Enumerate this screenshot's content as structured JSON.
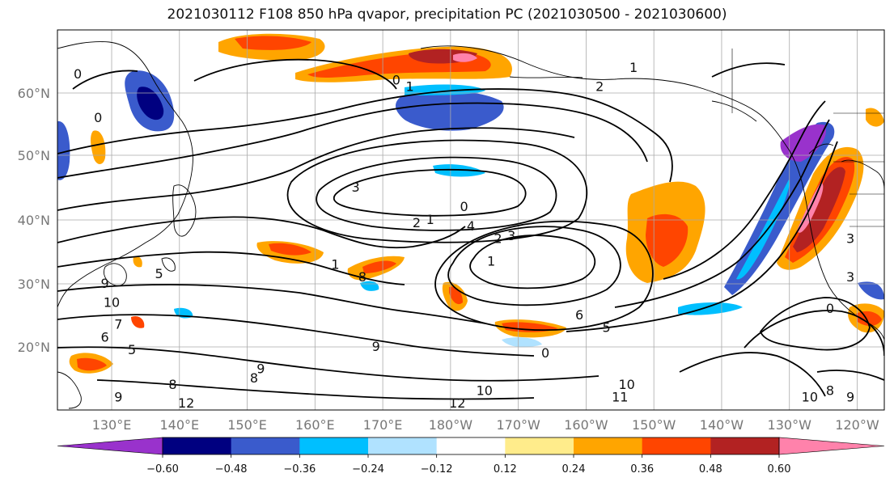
{
  "title": "2021030112 F108 850 hPa qvapor, precipitation PC (2021030500 - 2021030600)",
  "lat_labels": [
    {
      "lat": 60,
      "text": "60°N"
    },
    {
      "lat": 50,
      "text": "50°N"
    },
    {
      "lat": 40,
      "text": "40°N"
    },
    {
      "lat": 30,
      "text": "30°N"
    },
    {
      "lat": 20,
      "text": "20°N"
    }
  ],
  "lon_labels": [
    "130°E",
    "140°E",
    "150°E",
    "160°E",
    "170°E",
    "180°W",
    "170°W",
    "160°W",
    "150°W",
    "140°W",
    "130°W",
    "120°W"
  ],
  "colorbar": {
    "colors": [
      "#9932cc",
      "#000080",
      "#3a5bcc",
      "#00bfff",
      "#b0e2ff",
      "#ffffff",
      "#ffec8b",
      "#ffa500",
      "#ff4500",
      "#b22222",
      "#ff82ab"
    ],
    "ticks": [
      "−0.60",
      "−0.48",
      "−0.36",
      "−0.24",
      "−0.12",
      "0.12",
      "0.24",
      "0.36",
      "0.48",
      "0.60"
    ]
  },
  "contour_labels": [
    {
      "text": "0",
      "lon": 125,
      "lat": 63
    },
    {
      "text": "0",
      "lon": 128,
      "lat": 56
    },
    {
      "text": "1",
      "lon": 174,
      "lat": 61
    },
    {
      "text": "0",
      "lon": 172,
      "lat": 62
    },
    {
      "text": "3",
      "lon": 166,
      "lat": 45
    },
    {
      "text": "0",
      "lon": 182,
      "lat": 42
    },
    {
      "text": "1",
      "lon": 177,
      "lat": 40
    },
    {
      "text": "2",
      "lon": 175,
      "lat": 39.5
    },
    {
      "text": "4",
      "lon": 183,
      "lat": 39
    },
    {
      "text": "2",
      "lon": 187,
      "lat": 37
    },
    {
      "text": "3",
      "lon": 189,
      "lat": 37.5
    },
    {
      "text": "1",
      "lon": 186,
      "lat": 33.5
    },
    {
      "text": "1",
      "lon": 163,
      "lat": 33
    },
    {
      "text": "8",
      "lon": 167,
      "lat": 31
    },
    {
      "text": "5",
      "lon": 137,
      "lat": 31.5
    },
    {
      "text": "9",
      "lon": 129,
      "lat": 30
    },
    {
      "text": "10",
      "lon": 130,
      "lat": 27
    },
    {
      "text": "7",
      "lon": 131,
      "lat": 23.5
    },
    {
      "text": "6",
      "lon": 129,
      "lat": 21.5
    },
    {
      "text": "5",
      "lon": 133,
      "lat": 19.5
    },
    {
      "text": "9",
      "lon": 169,
      "lat": 20
    },
    {
      "text": "9",
      "lon": 152,
      "lat": 16.5
    },
    {
      "text": "8",
      "lon": 151,
      "lat": 15
    },
    {
      "text": "8",
      "lon": 139,
      "lat": 14
    },
    {
      "text": "9",
      "lon": 131,
      "lat": 12
    },
    {
      "text": "12",
      "lon": 141,
      "lat": 11
    },
    {
      "text": "10",
      "lon": 185,
      "lat": 13
    },
    {
      "text": "12",
      "lon": 181,
      "lat": 11
    },
    {
      "text": "6",
      "lon": 199,
      "lat": 25
    },
    {
      "text": "5",
      "lon": 203,
      "lat": 23
    },
    {
      "text": "0",
      "lon": 194,
      "lat": 19
    },
    {
      "text": "10",
      "lon": 206,
      "lat": 14
    },
    {
      "text": "11",
      "lon": 205,
      "lat": 12
    },
    {
      "text": "2",
      "lon": 202,
      "lat": 61
    },
    {
      "text": "1",
      "lon": 207,
      "lat": 64
    },
    {
      "text": "3",
      "lon": 239,
      "lat": 37
    },
    {
      "text": "3",
      "lon": 239,
      "lat": 31
    },
    {
      "text": "0",
      "lon": 236,
      "lat": 26
    },
    {
      "text": "10",
      "lon": 233,
      "lat": 12
    },
    {
      "text": "8",
      "lon": 236,
      "lat": 13
    },
    {
      "text": "9",
      "lon": 239,
      "lat": 12
    }
  ]
}
